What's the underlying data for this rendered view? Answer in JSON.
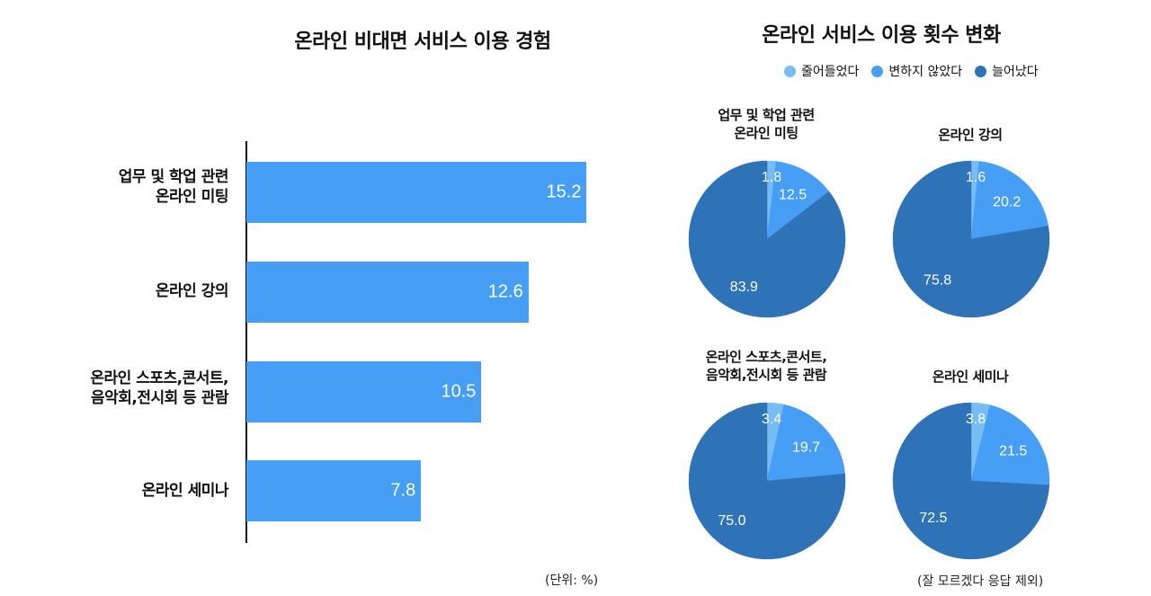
{
  "colors": {
    "bar": "#479ef5",
    "decreased": "#76bdf3",
    "unchanged": "#479ef5",
    "increased": "#2e72b8"
  },
  "chart_data": [
    {
      "type": "bar",
      "orientation": "horizontal",
      "title": "온라인 비대면 서비스 이용 경험",
      "categories": [
        "업무 및 학업 관련\n온라인 미팅",
        "온라인 강의",
        "온라인 스포츠,콘서트,\n음악회,전시회 등 관람",
        "온라인 세미나"
      ],
      "values": [
        15.2,
        12.6,
        10.5,
        7.8
      ],
      "value_labels": [
        "15.2",
        "12.6",
        "10.5",
        "7.8"
      ],
      "xlim": [
        0,
        20
      ],
      "unit_note": "(단위: %)",
      "grid": false
    },
    {
      "type": "pie",
      "title": "온라인 서비스 이용 횟수 변화",
      "legend": [
        "줄어들었다",
        "변하지 않았다",
        "늘어났다"
      ],
      "legend_position": "top-right",
      "note": "(잘 모르겠다 응답 제외)",
      "pies": [
        {
          "label": "업무 및 학업 관련\n온라인 미팅",
          "values": [
            1.8,
            12.5,
            83.9
          ],
          "value_labels": [
            "1.8",
            "12.5",
            "83.9"
          ]
        },
        {
          "label": "온라인 강의",
          "values": [
            1.6,
            20.2,
            75.8
          ],
          "value_labels": [
            "1.6",
            "20.2",
            "75.8"
          ]
        },
        {
          "label": "온라인 스포츠,콘서트,\n음악회,전시회 등 관람",
          "values": [
            3.4,
            19.7,
            75.0
          ],
          "value_labels": [
            "3.4",
            "19.7",
            "75.0"
          ]
        },
        {
          "label": "온라인 세미나",
          "values": [
            3.8,
            21.5,
            72.5
          ],
          "value_labels": [
            "3.8",
            "21.5",
            "72.5"
          ]
        }
      ]
    }
  ]
}
